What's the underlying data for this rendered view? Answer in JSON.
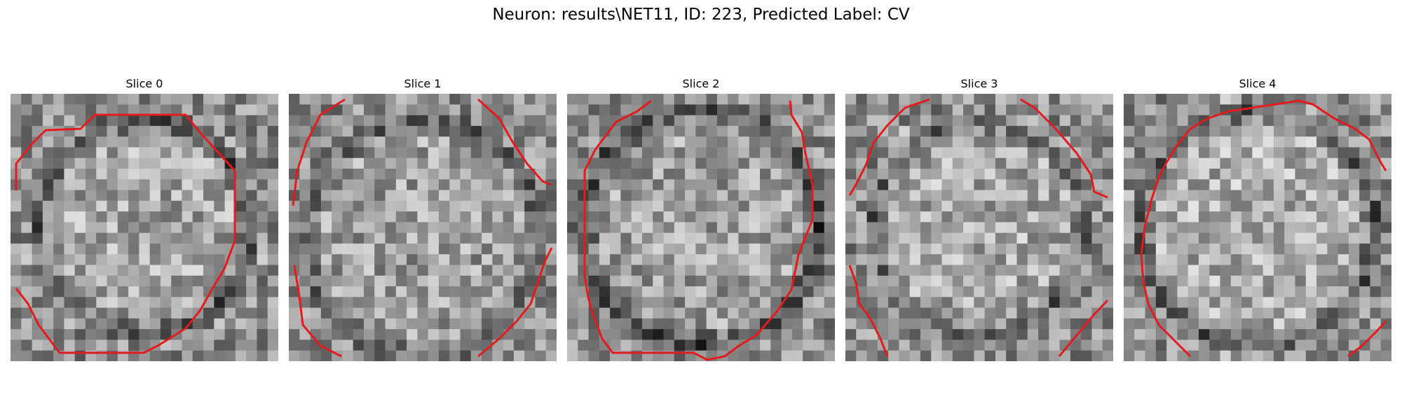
{
  "figure": {
    "title": "Neuron: results\\NET11, ID: 223, Predicted Label: CV",
    "contour_color": "#e41a1c"
  },
  "panels": [
    {
      "title": "Slice 0"
    },
    {
      "title": "Slice 1"
    },
    {
      "title": "Slice 2"
    },
    {
      "title": "Slice 3"
    },
    {
      "title": "Slice 4"
    }
  ]
}
